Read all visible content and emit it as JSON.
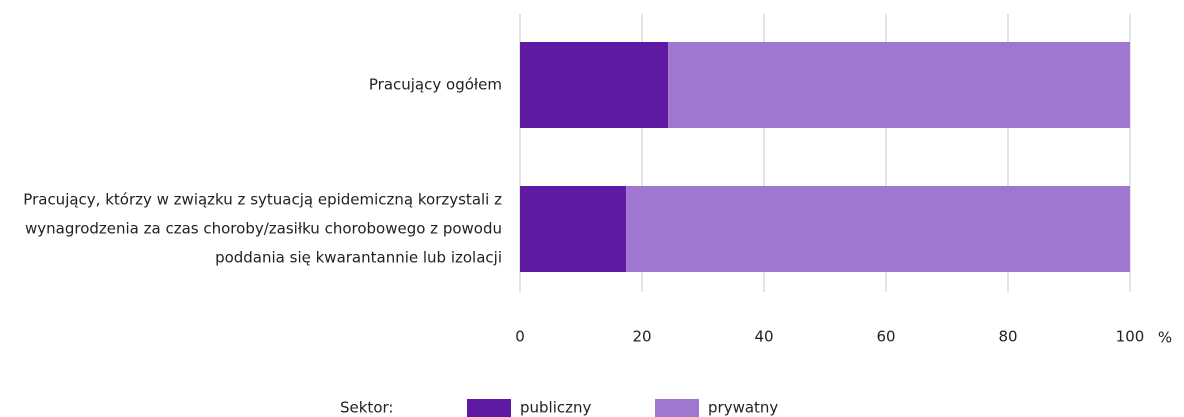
{
  "chart_data": {
    "type": "stacked-bar-horizontal",
    "categories": [
      "Pracujący ogółem",
      "Pracujący, którzy w związku z sytuacją epidemiczną korzystali z wynagrodzenia za czas choroby/zasiłku chorobowego z powodu poddania się kwarantannie lub izolacji"
    ],
    "series": [
      {
        "name": "publiczny",
        "color": "#5e1aa3",
        "values": [
          24.3,
          17.4
        ]
      },
      {
        "name": "prywatny",
        "color": "#a077d0",
        "values": [
          75.7,
          82.6
        ]
      }
    ],
    "xlim": [
      0,
      100
    ],
    "xticks": [
      0,
      20,
      40,
      60,
      80,
      100
    ],
    "x_unit": "%",
    "grid": true,
    "legend_title": "Sektor:",
    "legend": "bottom"
  }
}
